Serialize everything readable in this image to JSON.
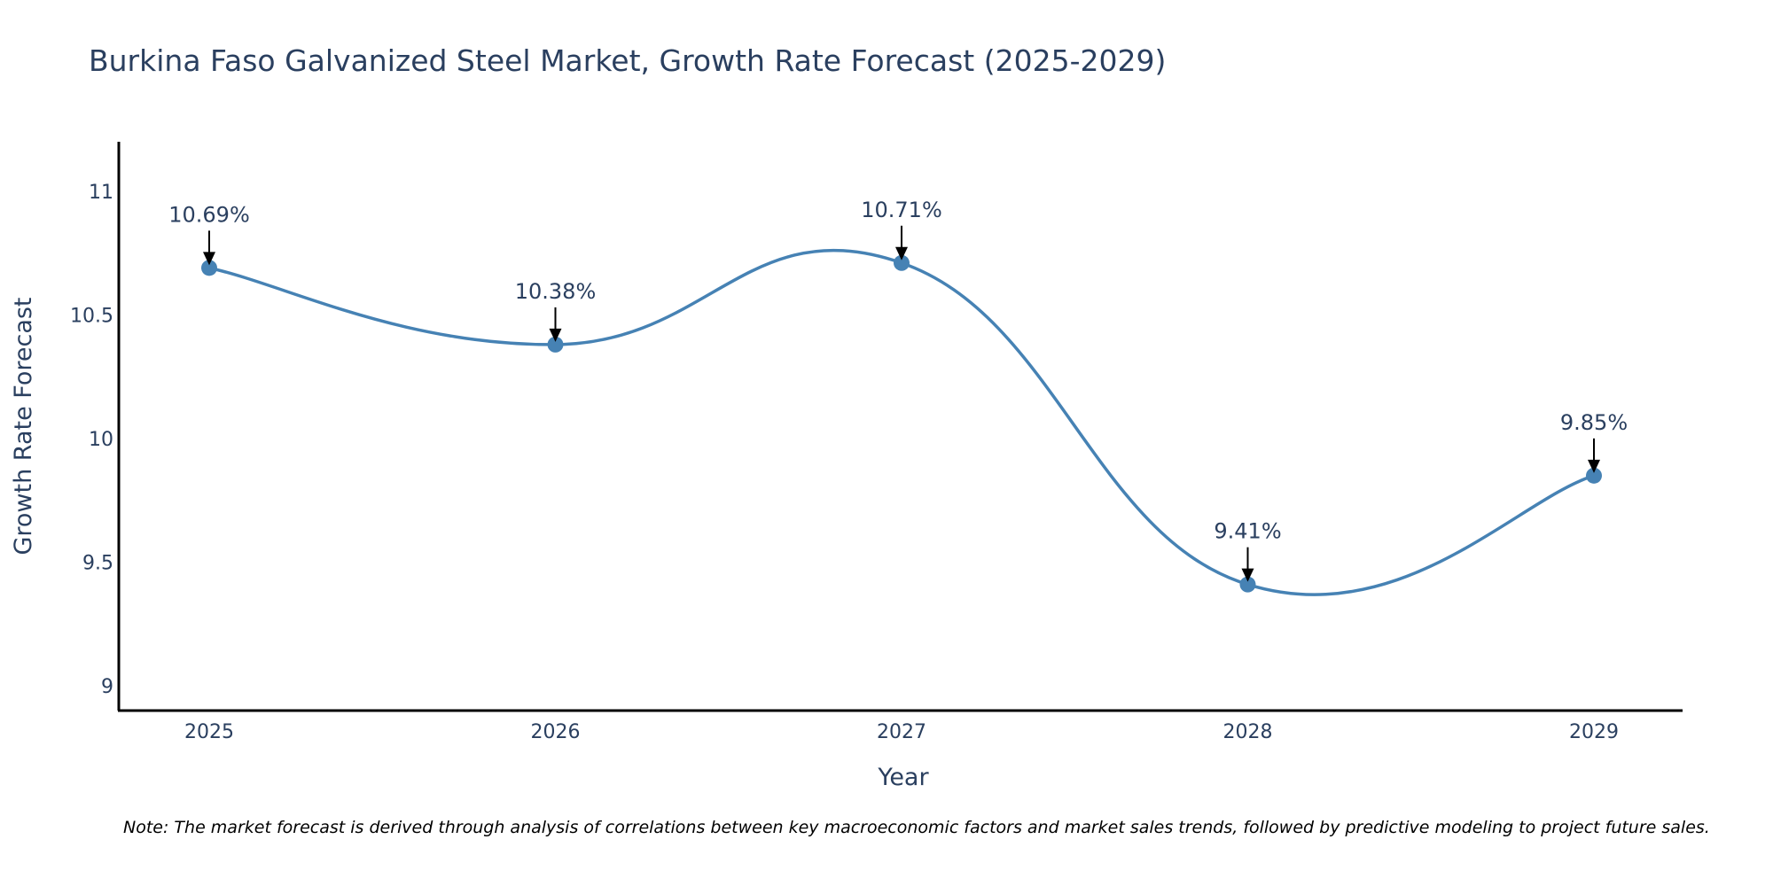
{
  "chart_data": {
    "type": "line",
    "title": "Burkina Faso Galvanized Steel Market, Growth Rate Forecast (2025-2029)",
    "xlabel": "Year",
    "ylabel": "Growth Rate Forecast",
    "categories": [
      "2025",
      "2026",
      "2027",
      "2028",
      "2029"
    ],
    "values": [
      10.69,
      10.38,
      10.71,
      9.41,
      9.85
    ],
    "data_labels": [
      "10.69%",
      "10.38%",
      "10.71%",
      "9.41%",
      "9.85%"
    ],
    "ylim": [
      8.9,
      11.2
    ],
    "yticks": [
      9,
      9.5,
      10,
      10.5,
      11
    ],
    "ytick_labels": [
      "9",
      "9.5",
      "10",
      "10.5",
      "11"
    ],
    "line_shape": "spline",
    "grid": false,
    "series_color": "#4682b4",
    "note": "Note: The market forecast is derived through analysis of correlations between key macroeconomic factors and market sales trends, followed by predictive modeling to project future sales."
  }
}
